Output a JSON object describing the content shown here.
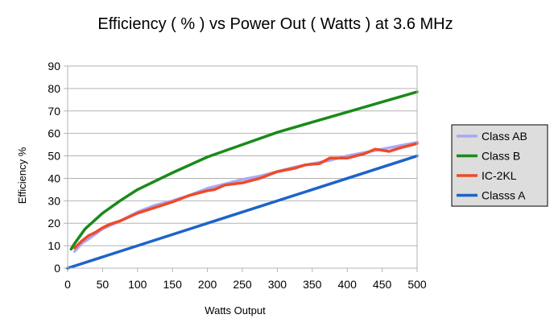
{
  "chart_data": {
    "type": "line",
    "title": "Efficiency ( % ) vs Power Out ( Watts ) at 3.6 MHz",
    "xlabel": "Watts Output",
    "ylabel": "Efficiency %",
    "xlim": [
      0,
      500
    ],
    "ylim": [
      0,
      90
    ],
    "x_ticks": [
      0,
      50,
      100,
      150,
      200,
      250,
      300,
      350,
      400,
      450,
      500
    ],
    "y_ticks": [
      0,
      10,
      20,
      30,
      40,
      50,
      60,
      70,
      80,
      90
    ],
    "grid": "horizontal",
    "legend_position": "right",
    "series": [
      {
        "name": "Class AB",
        "color": "#a9a9f5",
        "points": [
          [
            10,
            7.5
          ],
          [
            20,
            11
          ],
          [
            30,
            13
          ],
          [
            50,
            17.5
          ],
          [
            75,
            21
          ],
          [
            100,
            25
          ],
          [
            125,
            28
          ],
          [
            150,
            30
          ],
          [
            175,
            32.5
          ],
          [
            200,
            35.5
          ],
          [
            225,
            37.5
          ],
          [
            250,
            39.5
          ],
          [
            275,
            41
          ],
          [
            300,
            43
          ],
          [
            325,
            45
          ],
          [
            350,
            46.5
          ],
          [
            375,
            48
          ],
          [
            400,
            50
          ],
          [
            425,
            51.5
          ],
          [
            450,
            53
          ],
          [
            475,
            54.5
          ],
          [
            500,
            56
          ]
        ]
      },
      {
        "name": "Class B",
        "color": "#1a8a1a",
        "points": [
          [
            5,
            8.5
          ],
          [
            10,
            11
          ],
          [
            25,
            17.5
          ],
          [
            50,
            24.5
          ],
          [
            75,
            30
          ],
          [
            100,
            35
          ],
          [
            150,
            42.5
          ],
          [
            200,
            49.5
          ],
          [
            250,
            55
          ],
          [
            300,
            60.5
          ],
          [
            350,
            65
          ],
          [
            400,
            69.5
          ],
          [
            450,
            74
          ],
          [
            500,
            78.5
          ]
        ]
      },
      {
        "name": "IC-2KL",
        "color": "#ee4a2a",
        "points": [
          [
            10,
            9
          ],
          [
            20,
            12
          ],
          [
            30,
            14.5
          ],
          [
            40,
            16
          ],
          [
            50,
            18
          ],
          [
            60,
            19.5
          ],
          [
            75,
            21
          ],
          [
            100,
            24.5
          ],
          [
            125,
            27
          ],
          [
            150,
            29.5
          ],
          [
            175,
            32.5
          ],
          [
            200,
            34.5
          ],
          [
            210,
            35
          ],
          [
            225,
            37
          ],
          [
            250,
            38
          ],
          [
            275,
            40
          ],
          [
            300,
            43
          ],
          [
            325,
            44.5
          ],
          [
            340,
            46
          ],
          [
            360,
            46.5
          ],
          [
            375,
            49
          ],
          [
            400,
            49
          ],
          [
            425,
            51
          ],
          [
            440,
            53
          ],
          [
            460,
            52
          ],
          [
            475,
            53.5
          ],
          [
            500,
            55.5
          ]
        ]
      },
      {
        "name": "Classs A",
        "color": "#1c64c8",
        "points": [
          [
            0,
            0
          ],
          [
            500,
            50
          ]
        ]
      }
    ]
  }
}
